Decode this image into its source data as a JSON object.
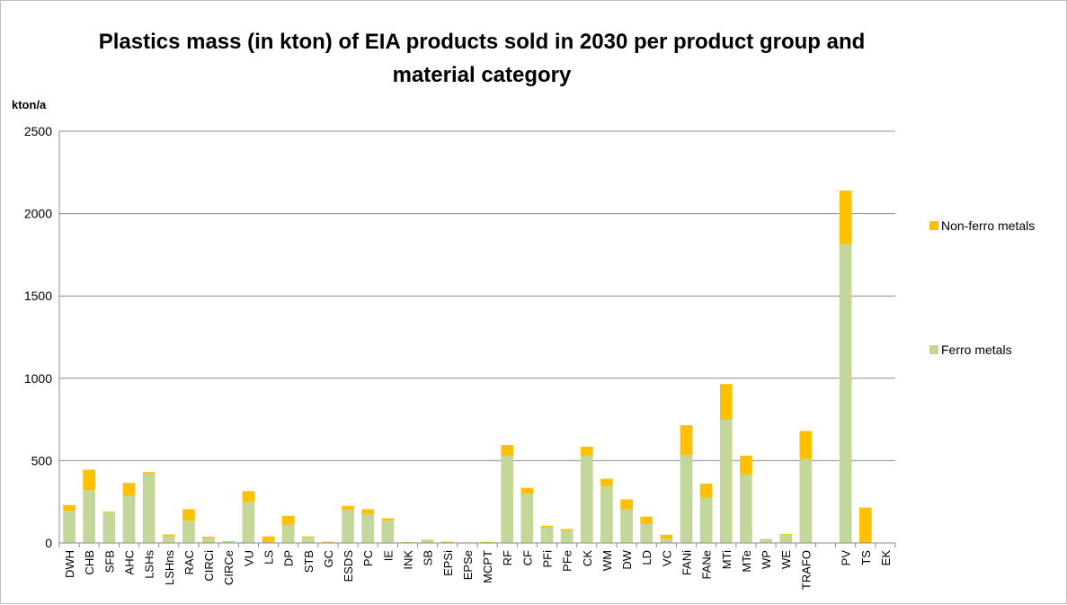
{
  "chart_data": {
    "type": "bar",
    "stacked": true,
    "title": "Plastics mass (in kton) of EIA products sold in 2030 per product group and material category",
    "title_lines": [
      "Plastics mass (in kton) of EIA products sold in 2030 per product group and",
      "material category"
    ],
    "ylabel": "kton/a",
    "ylim": [
      0,
      2500
    ],
    "yticks": [
      0,
      500,
      1000,
      1500,
      2000,
      2500
    ],
    "grid": true,
    "legend_position": "right",
    "categories": [
      "DWH",
      "CHB",
      "SFB",
      "AHC",
      "LSHs",
      "LSHns",
      "RAC",
      "CIRCi",
      "CIRCe",
      "VU",
      "LS",
      "DP",
      "STB",
      "GC",
      "ESDS",
      "PC",
      "IE",
      "INK",
      "SB",
      "EPSi",
      "EPSe",
      "MCPT",
      "RF",
      "CF",
      "PFi",
      "PFe",
      "CK",
      "WM",
      "DW",
      "LD",
      "VC",
      "FANi",
      "FANe",
      "MTi",
      "MTe",
      "WP",
      "WE",
      "TRAFO",
      "",
      "PV",
      "TS",
      "EK"
    ],
    "series": [
      {
        "name": "Ferro metals",
        "color": "#c4d79b",
        "values": [
          195,
          320,
          185,
          285,
          420,
          40,
          135,
          30,
          8,
          250,
          5,
          110,
          35,
          5,
          200,
          175,
          135,
          3,
          15,
          4,
          2,
          3,
          530,
          300,
          95,
          75,
          530,
          345,
          205,
          115,
          25,
          535,
          275,
          750,
          415,
          25,
          50,
          510,
          0,
          1815,
          0,
          0
        ]
      },
      {
        "name": "Non-ferro metals",
        "color": "#ffc000",
        "values": [
          35,
          125,
          5,
          80,
          10,
          12,
          70,
          8,
          2,
          65,
          35,
          55,
          5,
          2,
          25,
          30,
          15,
          2,
          5,
          4,
          2,
          3,
          65,
          35,
          10,
          10,
          55,
          45,
          60,
          45,
          25,
          180,
          85,
          215,
          115,
          0,
          5,
          170,
          0,
          325,
          215,
          0
        ]
      }
    ]
  }
}
